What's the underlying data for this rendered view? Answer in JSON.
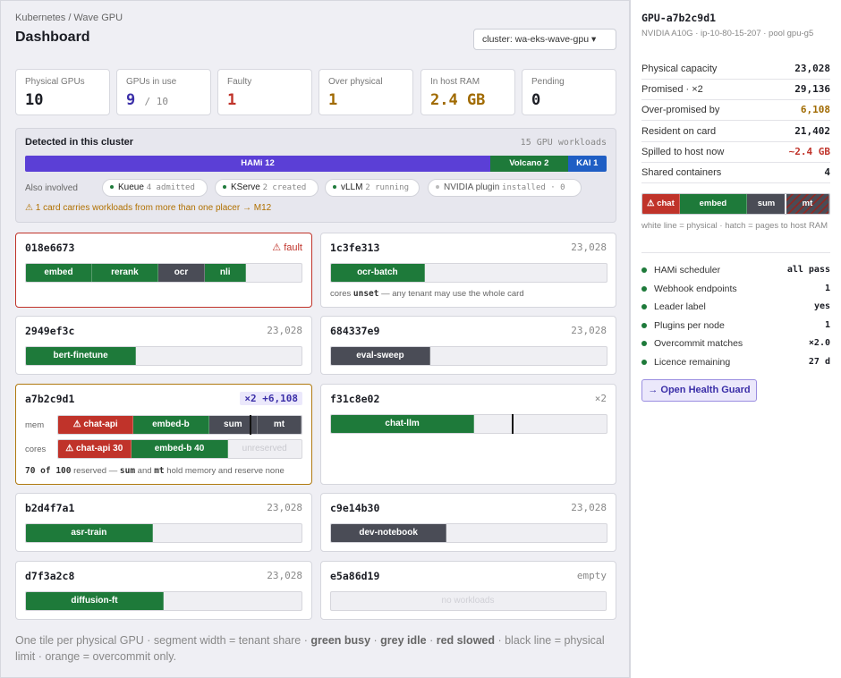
{
  "breadcrumb": "Kubernetes / Wave GPU",
  "title": "Dashboard",
  "cluster_select": "cluster: wa-eks-wave-gpu ▾",
  "stats": [
    {
      "label": "Physical GPUs",
      "value": "10",
      "color": "#1b1d24"
    },
    {
      "label": "GPUs in use",
      "value": "9",
      "extra": "/ 10",
      "color": "#3b2fa8"
    },
    {
      "label": "Faulty",
      "value": "1",
      "color": "#c0332a"
    },
    {
      "label": "Over physical",
      "value": "1",
      "color": "#a06a00"
    },
    {
      "label": "In host RAM",
      "value": "2.4 GB",
      "color": "#a06a00"
    },
    {
      "label": "Pending",
      "value": "0",
      "color": "#1b1d24"
    }
  ],
  "detected": {
    "title": "Detected in this cluster",
    "count": "15 GPU workloads",
    "placers": [
      {
        "label": "HAMi 12",
        "share": 12,
        "color": "#5b3fd6"
      },
      {
        "label": "Volcano 2",
        "share": 2,
        "color": "#1e7a3a"
      },
      {
        "label": "KAI 1",
        "share": 1,
        "color": "#1f5ec4"
      }
    ],
    "also_label": "Also involved",
    "chips": [
      {
        "name": "Kueue",
        "sub": "4 admitted",
        "active": true
      },
      {
        "name": "KServe",
        "sub": "2 created",
        "active": true
      },
      {
        "name": "vLLM",
        "sub": "2 running",
        "active": true
      },
      {
        "name": "NVIDIA plugin",
        "sub": "installed · 0",
        "active": false
      }
    ],
    "warning": "⚠ 1 card carries workloads from more than one placer  →  M12"
  },
  "tiles": [
    {
      "id": "018e6673",
      "right": "⚠ fault",
      "segs": [
        {
          "l": "embed",
          "w": 24,
          "c": "g"
        },
        {
          "l": "rerank",
          "w": 24,
          "c": "g"
        },
        {
          "l": "ocr",
          "w": 17,
          "c": "gr"
        },
        {
          "l": "nli",
          "w": 15,
          "c": "g"
        }
      ]
    },
    {
      "id": "1c3fe313",
      "right": "23,028",
      "segs": [
        {
          "l": "ocr-batch",
          "w": 34,
          "c": "g"
        }
      ],
      "note_b": "unset",
      "note": "cores  — any tenant may use the whole card"
    },
    {
      "id": "2949ef3c",
      "right": "23,028",
      "segs": [
        {
          "l": "bert-finetune",
          "w": 40,
          "c": "g"
        }
      ]
    },
    {
      "id": "684337e9",
      "right": "23,028",
      "segs": [
        {
          "l": "eval-sweep",
          "w": 36,
          "c": "gr"
        }
      ]
    },
    {
      "id": "a7b2c9d1",
      "right": "×2 +6,108",
      "mem_label": "mem",
      "cores_label": "cores",
      "mem": [
        {
          "l": "⚠ chat-api",
          "w": 31,
          "c": "r"
        },
        {
          "l": "embed-b",
          "w": 31,
          "c": "g"
        },
        {
          "l": "sum",
          "w": 20,
          "c": "gr"
        },
        {
          "l": "mt",
          "w": 18,
          "c": "gr"
        }
      ],
      "cores": [
        {
          "l": "⚠ chat-api 30",
          "w": 30,
          "c": "r"
        },
        {
          "l": "embed-b 40",
          "w": 40,
          "c": "g"
        }
      ],
      "unreserved": "unreserved",
      "note": "70 of 100 reserved — sum and mt hold memory and reserve none"
    },
    {
      "id": "f31c8e02",
      "right": "×2",
      "segs": [
        {
          "l": "chat-llm",
          "w": 52,
          "c": "g"
        }
      ]
    },
    {
      "id": "b2d4f7a1",
      "right": "23,028",
      "segs": [
        {
          "l": "asr-train",
          "w": 46,
          "c": "g"
        }
      ]
    },
    {
      "id": "c9e14b30",
      "right": "23,028",
      "segs": [
        {
          "l": "dev-notebook",
          "w": 42,
          "c": "gr"
        }
      ]
    },
    {
      "id": "d7f3a2c8",
      "right": "23,028",
      "segs": [
        {
          "l": "diffusion-ft",
          "w": 50,
          "c": "g"
        }
      ]
    },
    {
      "id": "e5a86d19",
      "right": "empty",
      "empty_label": "no workloads"
    }
  ],
  "footer": {
    "a": "One tile per physical GPU · segment width = tenant share · ",
    "b1": "green busy",
    "s1": " · ",
    "b2": "grey idle",
    "s2": " · ",
    "b3": "red slowed",
    "c": " · black line = physical limit · orange = overcommit only."
  },
  "side": {
    "gpu": "GPU-a7b2c9d1",
    "sub": "NVIDIA A10G · ip-10-80-15-207 · pool gpu-g5",
    "kv": [
      {
        "k": "Physical capacity",
        "v": "23,028",
        "color": "#1b1d24"
      },
      {
        "k": "Promised · ×2",
        "v": "29,136",
        "color": "#1b1d24"
      },
      {
        "k": "Over-promised by",
        "v": "6,108",
        "color": "#a06a00"
      },
      {
        "k": "Resident on card",
        "v": "21,402",
        "color": "#1b1d24"
      },
      {
        "k": "Spilled to host now",
        "v": "~2.4 GB",
        "color": "#c0332a"
      },
      {
        "k": "Shared containers",
        "v": "4",
        "color": "#1b1d24"
      }
    ],
    "mini": [
      {
        "l": "⚠ chat",
        "c": "r",
        "w": 20
      },
      {
        "l": "embed",
        "c": "g",
        "w": 36
      },
      {
        "l": "sum",
        "c": "gr",
        "w": 21
      },
      {
        "l": "mt",
        "c": "hatch",
        "w": 23
      }
    ],
    "legend": "white line = physical · hatch = pages to host RAM",
    "checks": [
      {
        "k": "HAMi scheduler",
        "v": "all pass"
      },
      {
        "k": "Webhook endpoints",
        "v": "1"
      },
      {
        "k": "Leader label",
        "v": "yes"
      },
      {
        "k": "Plugins per node",
        "v": "1"
      },
      {
        "k": "Overcommit matches",
        "v": "×2.0"
      },
      {
        "k": "Licence remaining",
        "v": "27 d"
      }
    ],
    "button": "→ Open Health Guard"
  }
}
